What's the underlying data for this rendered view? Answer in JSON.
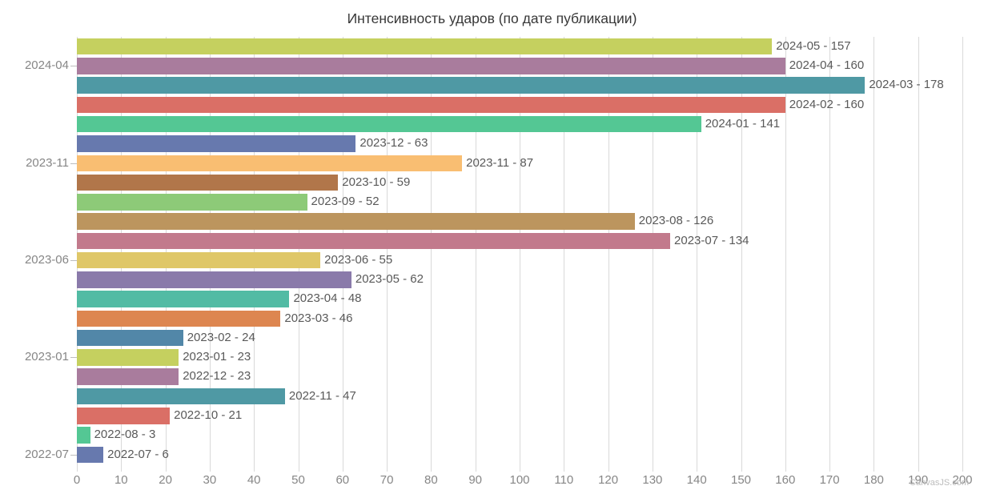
{
  "title": "Интенсивность ударов (по дате публикации)",
  "watermark": "CanvasJS.com",
  "colors": {
    "background": "#ffffff",
    "title": "#373737",
    "gridline": "#d9d9d9",
    "tick": "#bdbdbd",
    "axis_label": "#868686",
    "bar_label": "#595959"
  },
  "chart_data": {
    "type": "bar",
    "orientation": "horizontal",
    "title": "Интенсивность ударов (по дате публикации)",
    "categories": [
      "2024-05",
      "2024-04",
      "2024-03",
      "2024-02",
      "2024-01",
      "2023-12",
      "2023-11",
      "2023-10",
      "2023-09",
      "2023-08",
      "2023-07",
      "2023-06",
      "2023-05",
      "2023-04",
      "2023-03",
      "2023-02",
      "2023-01",
      "2022-12",
      "2022-11",
      "2022-10",
      "2022-08",
      "2022-07"
    ],
    "values": [
      157,
      160,
      178,
      160,
      141,
      63,
      87,
      59,
      52,
      126,
      134,
      55,
      62,
      48,
      46,
      24,
      23,
      23,
      47,
      21,
      3,
      6
    ],
    "bar_labels": [
      "2024-05 - 157",
      "2024-04 - 160",
      "2024-03 - 178",
      "2024-02 - 160",
      "2024-01 - 141",
      "2023-12 - 63",
      "2023-11 - 87",
      "2023-10 - 59",
      "2023-09 - 52",
      "2023-08 - 126",
      "2023-07 - 134",
      "2023-06 - 55",
      "2023-05 - 62",
      "2023-04 - 48",
      "2023-03 - 46",
      "2023-02 - 24",
      "2023-01 - 23",
      "2022-12 - 23",
      "2022-11 - 47",
      "2022-10 - 21",
      "2022-08 - 3",
      "2022-07 - 6"
    ],
    "palette": [
      "#c5d05f",
      "#a97c9d",
      "#4f99a4",
      "#da6f66",
      "#54c794",
      "#6779ae",
      "#f9be72",
      "#b1764a",
      "#8dca78",
      "#bc955e",
      "#c27a8c",
      "#dfc768",
      "#8a7aaa",
      "#52bba4",
      "#dd8650",
      "#5287a8"
    ],
    "bar_colors": [
      "#c5d05f",
      "#a97c9d",
      "#4f99a4",
      "#da6f66",
      "#54c794",
      "#6779ae",
      "#f9be72",
      "#b1764a",
      "#8dca78",
      "#bc955e",
      "#c27a8c",
      "#dfc768",
      "#8a7aaa",
      "#52bba4",
      "#dd8650",
      "#5287a8",
      "#c5d05f",
      "#a97c9d",
      "#4f99a4",
      "#da6f66",
      "#54c794",
      "#6779ae"
    ],
    "x_axis": {
      "min": 0,
      "max": 200,
      "tick_interval": 10,
      "ticks": [
        0,
        10,
        20,
        30,
        40,
        50,
        60,
        70,
        80,
        90,
        100,
        110,
        120,
        130,
        140,
        150,
        160,
        170,
        180,
        190,
        200
      ]
    },
    "y_axis": {
      "tick_labels": [
        "2024-04",
        "2023-11",
        "2023-06",
        "2023-01",
        "2022-07"
      ],
      "tick_indices": [
        1,
        6,
        11,
        16,
        21
      ],
      "label_interval": 5
    },
    "grid": true,
    "legend_position": "none"
  }
}
